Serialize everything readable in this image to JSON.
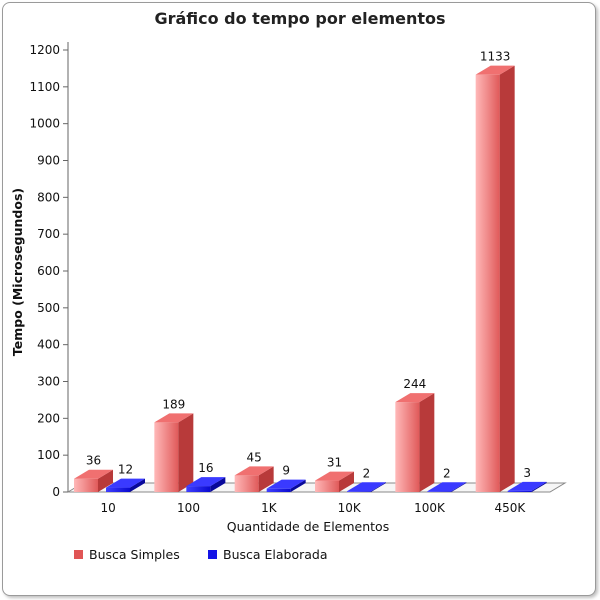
{
  "chart_data": {
    "type": "bar",
    "title": "Gráfico do tempo por elementos",
    "xlabel": "Quantidade de Elementos",
    "ylabel": "Tempo (Microsegundos)",
    "categories": [
      "10",
      "100",
      "1K",
      "10K",
      "100K",
      "450K"
    ],
    "series": [
      {
        "name": "Busca Simples",
        "values": [
          36,
          189,
          45,
          31,
          244,
          1133
        ],
        "color": "#e05555"
      },
      {
        "name": "Busca Elaborada",
        "values": [
          12,
          16,
          9,
          2,
          2,
          3
        ],
        "color": "#1414e6"
      }
    ],
    "ylim": [
      0,
      1200
    ],
    "yticks": [
      0,
      100,
      200,
      300,
      400,
      500,
      600,
      700,
      800,
      900,
      1000,
      1100,
      1200
    ],
    "grid": false,
    "legend": "bottom-left",
    "style": "3d-bar"
  }
}
